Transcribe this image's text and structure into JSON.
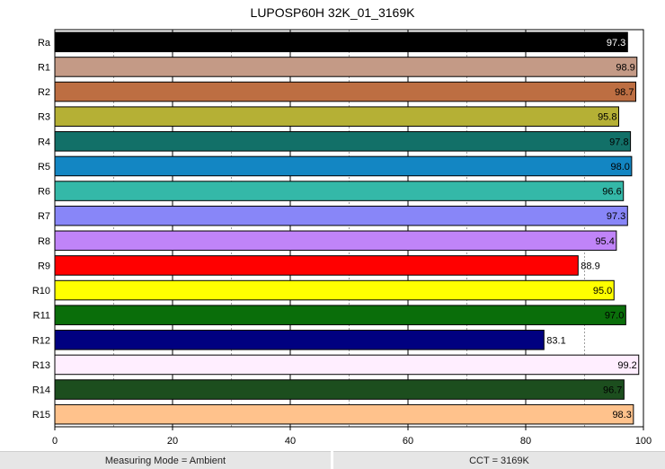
{
  "chart_data": {
    "type": "bar",
    "orientation": "horizontal",
    "title": "LUPOSP60H 32K_01_3169K",
    "categories": [
      "Ra",
      "R1",
      "R2",
      "R3",
      "R4",
      "R5",
      "R6",
      "R7",
      "R8",
      "R9",
      "R10",
      "R11",
      "R12",
      "R13",
      "R14",
      "R15"
    ],
    "values": [
      97.3,
      98.9,
      98.7,
      95.8,
      97.8,
      98.0,
      96.6,
      97.3,
      95.4,
      88.9,
      95.0,
      97.0,
      83.1,
      99.2,
      96.7,
      98.3
    ],
    "value_labels": [
      "97.3",
      "98.9",
      "98.7",
      "95.8",
      "97.8",
      "98.0",
      "96.6",
      "97.3",
      "95.4",
      "88.9",
      "95.0",
      "97.0",
      "83.1",
      "99.2",
      "96.7",
      "98.3"
    ],
    "colors": [
      "#000000",
      "#c49a86",
      "#bd6e42",
      "#b5b035",
      "#127068",
      "#1386c3",
      "#34b8a8",
      "#8886f8",
      "#c084f8",
      "#ff0000",
      "#ffff00",
      "#0a6e0a",
      "#000080",
      "#ffeeff",
      "#1c4e1e",
      "#ffc28c"
    ],
    "label_colors": [
      "#ffffff",
      "#000000",
      "#000000",
      "#000000",
      "#000000",
      "#000000",
      "#000000",
      "#000000",
      "#000000",
      "#000000",
      "#000000",
      "#000000",
      "#000000",
      "#000000",
      "#000000",
      "#000000"
    ],
    "xlim": [
      0,
      100
    ],
    "xticks": [
      0,
      20,
      40,
      60,
      80,
      100
    ],
    "grid": true
  },
  "status": {
    "left": "Measuring Mode = Ambient",
    "right": "CCT = 3169K"
  }
}
